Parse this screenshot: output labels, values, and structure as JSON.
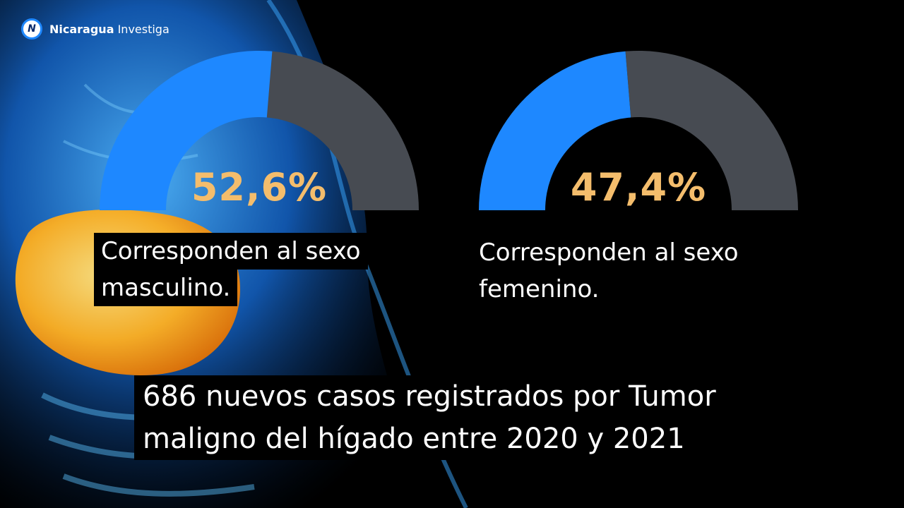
{
  "logo": {
    "badge": "N",
    "brand_bold": "Nicaragua",
    "brand_rest": "Investiga"
  },
  "colors": {
    "accent": "#1e88ff",
    "track": "#474b52",
    "percent": "#f4bd6c"
  },
  "chart_data": [
    {
      "type": "pie",
      "value": 52.6,
      "label": "52,6%",
      "caption_lines": [
        "Corresponden al sexo",
        "masculino."
      ]
    },
    {
      "type": "pie",
      "value": 47.4,
      "label": "47,4%",
      "caption_lines": [
        "Corresponden al sexo",
        "femenino."
      ]
    }
  ],
  "headline": {
    "lines": [
      "686 nuevos casos registrados por Tumor",
      "maligno del hígado entre 2020 y 2021"
    ]
  }
}
